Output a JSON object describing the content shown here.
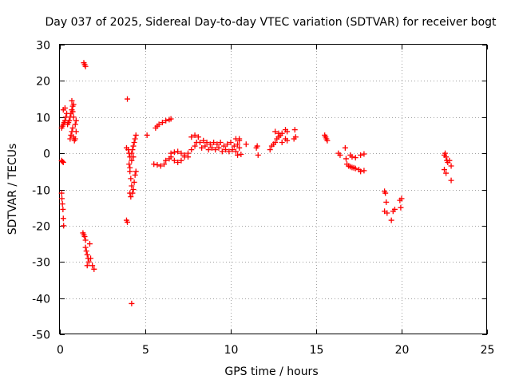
{
  "chart_data": {
    "type": "scatter",
    "title": "Day 037 of 2025, Sidereal Day-to-day VTEC variation (SDTVAR) for receiver bogt",
    "xlabel": "GPS time / hours",
    "ylabel": "SDTVAR / TECUs",
    "xlim": [
      0,
      25
    ],
    "ylim": [
      -50,
      30
    ],
    "xticks": [
      0,
      5,
      10,
      15,
      20,
      25
    ],
    "yticks": [
      -50,
      -40,
      -30,
      -20,
      -10,
      0,
      10,
      20,
      30
    ],
    "grid": true,
    "marker": "+",
    "color": "#ff0000",
    "series": [
      {
        "name": "SDTVAR",
        "points": [
          [
            0.1,
            -2
          ],
          [
            0.15,
            -2.3
          ],
          [
            0.2,
            -2.5
          ],
          [
            0.1,
            -11
          ],
          [
            0.12,
            -12.5
          ],
          [
            0.15,
            -14
          ],
          [
            0.18,
            -15.5
          ],
          [
            0.2,
            -18
          ],
          [
            0.22,
            -20
          ],
          [
            0.1,
            7
          ],
          [
            0.15,
            7.5
          ],
          [
            0.2,
            8
          ],
          [
            0.25,
            8.5
          ],
          [
            0.3,
            9
          ],
          [
            0.35,
            10
          ],
          [
            0.2,
            12
          ],
          [
            0.3,
            12.5
          ],
          [
            0.4,
            11
          ],
          [
            0.45,
            8
          ],
          [
            0.5,
            8.5
          ],
          [
            0.55,
            9
          ],
          [
            0.6,
            10
          ],
          [
            0.65,
            11
          ],
          [
            0.7,
            12
          ],
          [
            0.75,
            13
          ],
          [
            0.8,
            13.5
          ],
          [
            0.7,
            14.5
          ],
          [
            0.75,
            11.5
          ],
          [
            0.8,
            10
          ],
          [
            0.6,
            4
          ],
          [
            0.65,
            5
          ],
          [
            0.7,
            6
          ],
          [
            0.75,
            7
          ],
          [
            0.8,
            4.5
          ],
          [
            0.85,
            3.5
          ],
          [
            0.9,
            4
          ],
          [
            0.95,
            6
          ],
          [
            0.9,
            8
          ],
          [
            0.95,
            9
          ],
          [
            1.4,
            25
          ],
          [
            1.45,
            24.5
          ],
          [
            1.5,
            24
          ],
          [
            1.35,
            -22
          ],
          [
            1.4,
            -22.5
          ],
          [
            1.45,
            -23
          ],
          [
            1.5,
            -24
          ],
          [
            1.5,
            -26
          ],
          [
            1.55,
            -27
          ],
          [
            1.6,
            -28
          ],
          [
            1.65,
            -29
          ],
          [
            1.7,
            -30
          ],
          [
            1.6,
            -31
          ],
          [
            1.75,
            -25
          ],
          [
            1.8,
            -29
          ],
          [
            1.9,
            -31
          ],
          [
            2.0,
            -32
          ],
          [
            3.9,
            1.5
          ],
          [
            4.0,
            1
          ],
          [
            4.05,
            0
          ],
          [
            4.1,
            -1
          ],
          [
            4.05,
            -3
          ],
          [
            4.1,
            -5
          ],
          [
            4.15,
            -7
          ],
          [
            4.2,
            -9
          ],
          [
            4.1,
            -11
          ],
          [
            4.15,
            -12
          ],
          [
            4.25,
            -11
          ],
          [
            4.3,
            -10
          ],
          [
            4.35,
            -8
          ],
          [
            4.4,
            -6
          ],
          [
            4.45,
            -5
          ],
          [
            4.2,
            0
          ],
          [
            4.25,
            1
          ],
          [
            4.3,
            2
          ],
          [
            4.35,
            3
          ],
          [
            4.4,
            4
          ],
          [
            4.45,
            5
          ],
          [
            4.3,
            -1
          ],
          [
            4.2,
            -2
          ],
          [
            4.1,
            -4
          ],
          [
            3.95,
            15
          ],
          [
            3.9,
            -18.5
          ],
          [
            3.95,
            -19
          ],
          [
            4.2,
            -41.5
          ],
          [
            5.1,
            5
          ],
          [
            5.5,
            -3
          ],
          [
            5.7,
            -3.2
          ],
          [
            5.9,
            -3.5
          ],
          [
            6.1,
            -3
          ],
          [
            6.2,
            -2
          ],
          [
            6.4,
            -1.5
          ],
          [
            6.5,
            -1
          ],
          [
            6.7,
            -2
          ],
          [
            6.9,
            -2.5
          ],
          [
            7.1,
            -2
          ],
          [
            7.3,
            -1
          ],
          [
            7.5,
            0
          ],
          [
            7.7,
            1
          ],
          [
            7.9,
            2
          ],
          [
            8.0,
            3
          ],
          [
            5.6,
            7
          ],
          [
            5.7,
            7.5
          ],
          [
            5.8,
            8
          ],
          [
            6.0,
            8.5
          ],
          [
            6.2,
            9
          ],
          [
            6.4,
            9.3
          ],
          [
            6.5,
            9.5
          ],
          [
            6.5,
            0
          ],
          [
            6.7,
            0.3
          ],
          [
            6.9,
            0.5
          ],
          [
            7.1,
            0
          ],
          [
            7.3,
            -0.5
          ],
          [
            7.5,
            -1
          ],
          [
            7.7,
            4.5
          ],
          [
            7.9,
            5
          ],
          [
            8.1,
            4.5
          ],
          [
            8.2,
            3
          ],
          [
            8.4,
            3.5
          ],
          [
            8.6,
            3
          ],
          [
            8.8,
            2.5
          ],
          [
            9.0,
            3
          ],
          [
            9.2,
            2.5
          ],
          [
            9.4,
            3
          ],
          [
            9.6,
            2
          ],
          [
            9.8,
            2.5
          ],
          [
            10.0,
            3
          ],
          [
            10.2,
            2
          ],
          [
            10.4,
            2.5
          ],
          [
            10.5,
            3.5
          ],
          [
            8.3,
            1.5
          ],
          [
            8.5,
            2
          ],
          [
            8.7,
            1
          ],
          [
            8.9,
            1.5
          ],
          [
            9.1,
            1
          ],
          [
            9.3,
            1.5
          ],
          [
            9.5,
            0.5
          ],
          [
            9.7,
            1
          ],
          [
            9.9,
            0.5
          ],
          [
            10.1,
            1
          ],
          [
            10.3,
            0.5
          ],
          [
            10.5,
            1.5
          ],
          [
            10.4,
            -0.5
          ],
          [
            10.6,
            -0.3
          ],
          [
            10.3,
            4
          ],
          [
            10.5,
            4
          ],
          [
            10.9,
            2.5
          ],
          [
            11.5,
            1.5
          ],
          [
            11.55,
            2
          ],
          [
            11.6,
            -0.5
          ],
          [
            12.3,
            1
          ],
          [
            12.4,
            2
          ],
          [
            12.5,
            2.5
          ],
          [
            12.6,
            3
          ],
          [
            12.7,
            4
          ],
          [
            12.8,
            4.5
          ],
          [
            12.9,
            5
          ],
          [
            13.0,
            5.5
          ],
          [
            12.6,
            6
          ],
          [
            12.8,
            5.5
          ],
          [
            13.2,
            6.5
          ],
          [
            13.3,
            6
          ],
          [
            13.0,
            3
          ],
          [
            13.2,
            4
          ],
          [
            13.3,
            3.5
          ],
          [
            13.7,
            4
          ],
          [
            13.75,
            6.5
          ],
          [
            13.8,
            4.5
          ],
          [
            15.5,
            5
          ],
          [
            15.55,
            4.5
          ],
          [
            15.6,
            4
          ],
          [
            15.65,
            3.5
          ],
          [
            16.3,
            0
          ],
          [
            16.4,
            -0.5
          ],
          [
            16.7,
            1.5
          ],
          [
            16.75,
            -1.5
          ],
          [
            16.8,
            -3
          ],
          [
            16.9,
            -3.5
          ],
          [
            17.0,
            -3.7
          ],
          [
            17.1,
            -3.9
          ],
          [
            17.2,
            -4
          ],
          [
            17.3,
            -4.2
          ],
          [
            17.5,
            -4.5
          ],
          [
            17.6,
            -5
          ],
          [
            17.8,
            -4.8
          ],
          [
            17.0,
            -0.5
          ],
          [
            17.1,
            -1
          ],
          [
            17.3,
            -1.2
          ],
          [
            17.6,
            -0.5
          ],
          [
            17.8,
            -0.2
          ],
          [
            19.0,
            -10.5
          ],
          [
            19.05,
            -11
          ],
          [
            19.1,
            -13.5
          ],
          [
            19.0,
            -16
          ],
          [
            19.15,
            -16.5
          ],
          [
            19.4,
            -18.5
          ],
          [
            19.5,
            -16
          ],
          [
            19.6,
            -15.5
          ],
          [
            19.9,
            -13
          ],
          [
            20.0,
            -12.5
          ],
          [
            19.95,
            -15
          ],
          [
            22.5,
            -0.5
          ],
          [
            22.55,
            0
          ],
          [
            22.6,
            -1
          ],
          [
            22.65,
            -2
          ],
          [
            22.7,
            -2.5
          ],
          [
            22.8,
            -2
          ],
          [
            22.9,
            -3.5
          ],
          [
            22.9,
            -7.5
          ],
          [
            22.5,
            -4.5
          ],
          [
            22.6,
            -5.5
          ]
        ]
      }
    ]
  }
}
